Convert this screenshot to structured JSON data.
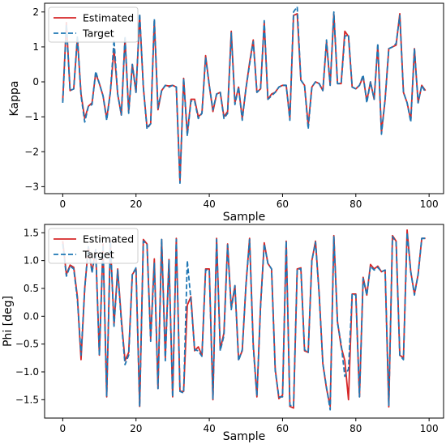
{
  "chart_data": [
    {
      "type": "line",
      "xlabel": "Sample",
      "ylabel": "Kappa",
      "xlim": [
        -4.95,
        103.95
      ],
      "ylim": [
        -3.2,
        2.25
      ],
      "xticks": [
        0,
        20,
        40,
        60,
        80,
        100
      ],
      "yticks": [
        -3,
        -2,
        -1,
        0,
        1,
        2
      ],
      "legend_position": "top-left",
      "series": [
        {
          "name": "Estimated",
          "color": "#d62728",
          "dash": "solid",
          "x": [
            0,
            1,
            2,
            3,
            4,
            5,
            6,
            7,
            8,
            9,
            10,
            11,
            12,
            13,
            14,
            15,
            16,
            17,
            18,
            19,
            20,
            21,
            22,
            23,
            24,
            25,
            26,
            27,
            28,
            29,
            30,
            31,
            32,
            33,
            34,
            35,
            36,
            37,
            38,
            39,
            40,
            41,
            42,
            43,
            44,
            45,
            46,
            47,
            48,
            49,
            50,
            51,
            52,
            53,
            54,
            55,
            56,
            57,
            58,
            59,
            60,
            61,
            62,
            63,
            64,
            65,
            66,
            67,
            68,
            69,
            70,
            71,
            72,
            73,
            74,
            75,
            76,
            77,
            78,
            79,
            80,
            81,
            82,
            83,
            84,
            85,
            86,
            87,
            88,
            89,
            90,
            91,
            92,
            93,
            94,
            95,
            96,
            97,
            98,
            99
          ],
          "values": [
            -0.55,
            1.7,
            -0.25,
            -0.2,
            1.25,
            -0.35,
            -1.05,
            -0.7,
            -0.6,
            0.25,
            -0.05,
            -0.4,
            -1.05,
            -0.3,
            0.95,
            -0.35,
            -0.95,
            1.25,
            -0.85,
            0.5,
            -0.3,
            1.9,
            -0.15,
            -1.3,
            -1.2,
            1.75,
            -0.8,
            -0.25,
            -0.1,
            -0.12,
            -0.1,
            -0.15,
            -2.85,
            0.1,
            -1.5,
            -0.5,
            -0.5,
            -1.0,
            -0.9,
            0.75,
            -0.1,
            -0.85,
            -0.35,
            -0.3,
            -1.0,
            -0.85,
            1.45,
            -0.6,
            -0.15,
            -1.05,
            -0.2,
            0.55,
            1.2,
            -0.3,
            -0.2,
            1.7,
            -0.5,
            -0.35,
            -0.3,
            -0.15,
            -0.1,
            -0.1,
            -1.05,
            1.9,
            1.95,
            0.05,
            -0.1,
            -1.25,
            -0.15,
            0.0,
            -0.05,
            -0.25,
            1.15,
            -0.1,
            1.95,
            -0.05,
            -0.05,
            1.45,
            1.3,
            -0.15,
            -0.2,
            -0.1,
            0.15,
            -0.55,
            0.0,
            -0.5,
            1.05,
            -1.45,
            -0.5,
            0.95,
            1.0,
            1.05,
            1.95,
            -0.3,
            -0.6,
            -1.1,
            0.95,
            -0.6,
            -0.1,
            -0.25
          ]
        },
        {
          "name": "Target",
          "color": "#1f77b4",
          "dash": "dashed",
          "x": [
            0,
            1,
            2,
            3,
            4,
            5,
            6,
            7,
            8,
            9,
            10,
            11,
            12,
            13,
            14,
            15,
            16,
            17,
            18,
            19,
            20,
            21,
            22,
            23,
            24,
            25,
            26,
            27,
            28,
            29,
            30,
            31,
            32,
            33,
            34,
            35,
            36,
            37,
            38,
            39,
            40,
            41,
            42,
            43,
            44,
            45,
            46,
            47,
            48,
            49,
            50,
            51,
            52,
            53,
            54,
            55,
            56,
            57,
            58,
            59,
            60,
            61,
            62,
            63,
            64,
            65,
            66,
            67,
            68,
            69,
            70,
            71,
            72,
            73,
            74,
            75,
            76,
            77,
            78,
            79,
            80,
            81,
            82,
            83,
            84,
            85,
            86,
            87,
            88,
            89,
            90,
            91,
            92,
            93,
            94,
            95,
            96,
            97,
            98,
            99
          ],
          "values": [
            -0.6,
            1.65,
            -0.25,
            -0.2,
            1.3,
            -0.4,
            -1.15,
            -0.7,
            -0.65,
            0.3,
            -0.05,
            -0.4,
            -1.1,
            -0.3,
            1.2,
            -0.35,
            -0.95,
            1.3,
            -0.9,
            0.5,
            -0.3,
            1.95,
            -0.15,
            -1.35,
            -1.2,
            1.8,
            -0.75,
            -0.25,
            -0.1,
            -0.15,
            -0.1,
            -0.15,
            -2.9,
            0.1,
            -1.55,
            -0.55,
            -0.55,
            -1.05,
            -0.9,
            0.7,
            -0.1,
            -0.8,
            -0.35,
            -0.3,
            -1.05,
            -0.9,
            1.4,
            -0.65,
            -0.15,
            -1.1,
            -0.2,
            0.5,
            1.15,
            -0.3,
            -0.2,
            1.75,
            -0.5,
            -0.4,
            -0.3,
            -0.15,
            -0.1,
            -0.1,
            -1.1,
            2.0,
            2.15,
            0.05,
            -0.1,
            -1.35,
            -0.15,
            0.0,
            -0.05,
            -0.25,
            1.2,
            -0.1,
            2.0,
            -0.05,
            -0.05,
            1.3,
            1.35,
            -0.15,
            -0.2,
            -0.1,
            0.2,
            -0.6,
            0.0,
            -0.5,
            1.1,
            -1.5,
            -0.5,
            0.95,
            1.0,
            1.1,
            1.9,
            -0.3,
            -0.6,
            -1.15,
            0.95,
            -0.6,
            -0.1,
            -0.3
          ]
        }
      ]
    },
    {
      "type": "line",
      "xlabel": "Sample",
      "ylabel": "Phi [deg]",
      "xlim": [
        -4.95,
        103.95
      ],
      "ylim": [
        -1.83,
        1.65
      ],
      "xticks": [
        0,
        20,
        40,
        60,
        80,
        100
      ],
      "yticks": [
        -1.5,
        -1.0,
        -0.5,
        0.0,
        0.5,
        1.0,
        1.5
      ],
      "ytick_labels": [
        "−1.5",
        "−1.0",
        "−0.5",
        "0.0",
        "0.5",
        "1.0",
        "1.5"
      ],
      "legend_position": "top-left",
      "series": [
        {
          "name": "Estimated",
          "color": "#d62728",
          "dash": "solid",
          "x": [
            0,
            1,
            2,
            3,
            4,
            5,
            6,
            7,
            8,
            9,
            10,
            11,
            12,
            13,
            14,
            15,
            16,
            17,
            18,
            19,
            20,
            21,
            22,
            23,
            24,
            25,
            26,
            27,
            28,
            29,
            30,
            31,
            32,
            33,
            34,
            35,
            36,
            37,
            38,
            39,
            40,
            41,
            42,
            43,
            44,
            45,
            46,
            47,
            48,
            49,
            50,
            51,
            52,
            53,
            54,
            55,
            56,
            57,
            58,
            59,
            60,
            61,
            62,
            63,
            64,
            65,
            66,
            67,
            68,
            69,
            70,
            71,
            72,
            73,
            74,
            75,
            76,
            77,
            78,
            79,
            80,
            81,
            82,
            83,
            84,
            85,
            86,
            87,
            88,
            89,
            90,
            91,
            92,
            93,
            94,
            95,
            96,
            97,
            98,
            99
          ],
          "values": [
            1.35,
            0.75,
            0.92,
            0.88,
            0.35,
            -0.78,
            0.5,
            1.25,
            0.8,
            1.2,
            -0.7,
            1.3,
            -1.45,
            1.35,
            -0.15,
            0.85,
            -0.05,
            -0.8,
            -0.65,
            0.75,
            0.85,
            -1.62,
            1.38,
            1.3,
            -0.4,
            1.03,
            -1.3,
            1.38,
            -0.75,
            1.02,
            -1.45,
            1.4,
            -1.35,
            -1.35,
            0.2,
            0.35,
            -0.62,
            -0.55,
            -0.7,
            0.85,
            0.85,
            -1.5,
            1.4,
            -0.6,
            -0.3,
            1.3,
            0.15,
            0.55,
            -0.78,
            -0.62,
            0.55,
            1.4,
            -0.5,
            -1.45,
            0.2,
            1.32,
            0.95,
            0.85,
            -0.95,
            -1.48,
            -1.42,
            1.35,
            -1.62,
            -1.65,
            0.85,
            0.87,
            -0.62,
            -0.65,
            1.0,
            1.35,
            0.4,
            -0.85,
            -1.3,
            -1.62,
            1.45,
            -0.1,
            -0.55,
            -0.8,
            -1.5,
            0.4,
            0.4,
            -1.45,
            0.7,
            0.38,
            0.93,
            0.85,
            0.9,
            0.8,
            0.83,
            -1.63,
            1.45,
            1.35,
            -0.7,
            -0.75,
            1.55,
            0.8,
            0.4,
            0.75,
            1.4,
            1.4
          ]
        },
        {
          "name": "Target",
          "color": "#1f77b4",
          "dash": "dashed",
          "x": [
            0,
            1,
            2,
            3,
            4,
            5,
            6,
            7,
            8,
            9,
            10,
            11,
            12,
            13,
            14,
            15,
            16,
            17,
            18,
            19,
            20,
            21,
            22,
            23,
            24,
            25,
            26,
            27,
            28,
            29,
            30,
            31,
            32,
            33,
            34,
            35,
            36,
            37,
            38,
            39,
            40,
            41,
            42,
            43,
            44,
            45,
            46,
            47,
            48,
            49,
            50,
            51,
            52,
            53,
            54,
            55,
            56,
            57,
            58,
            59,
            60,
            61,
            62,
            63,
            64,
            65,
            66,
            67,
            68,
            69,
            70,
            71,
            72,
            73,
            74,
            75,
            76,
            77,
            78,
            79,
            80,
            81,
            82,
            83,
            84,
            85,
            86,
            87,
            88,
            89,
            90,
            91,
            92,
            93,
            94,
            95,
            96,
            97,
            98,
            99
          ],
          "values": [
            1.3,
            0.72,
            0.9,
            0.85,
            0.3,
            -0.7,
            0.5,
            1.25,
            0.78,
            1.2,
            -0.7,
            1.28,
            -1.43,
            1.35,
            -0.18,
            0.83,
            -0.1,
            -0.87,
            -0.7,
            0.75,
            0.87,
            -1.62,
            1.35,
            1.3,
            -0.45,
            0.95,
            -1.3,
            1.38,
            -0.8,
            1.0,
            -1.45,
            1.38,
            -1.35,
            -1.38,
            1.0,
            0.28,
            -0.6,
            -0.62,
            -0.72,
            0.83,
            0.83,
            -1.48,
            1.38,
            -0.62,
            -0.35,
            1.28,
            0.12,
            0.55,
            -0.8,
            -0.6,
            0.55,
            1.38,
            -0.55,
            -1.43,
            0.17,
            1.3,
            0.95,
            0.85,
            -0.98,
            -1.45,
            -1.45,
            1.35,
            -1.6,
            -1.62,
            0.85,
            0.85,
            -0.6,
            -0.65,
            1.0,
            1.33,
            0.38,
            -0.85,
            -1.28,
            -1.68,
            1.43,
            -0.12,
            -0.5,
            -1.08,
            -0.95,
            0.4,
            0.38,
            -1.45,
            0.68,
            0.38,
            0.9,
            0.83,
            0.88,
            0.8,
            0.83,
            -1.6,
            1.43,
            1.33,
            -0.7,
            -0.78,
            1.5,
            0.8,
            0.38,
            0.75,
            1.4,
            1.4
          ]
        }
      ]
    }
  ]
}
